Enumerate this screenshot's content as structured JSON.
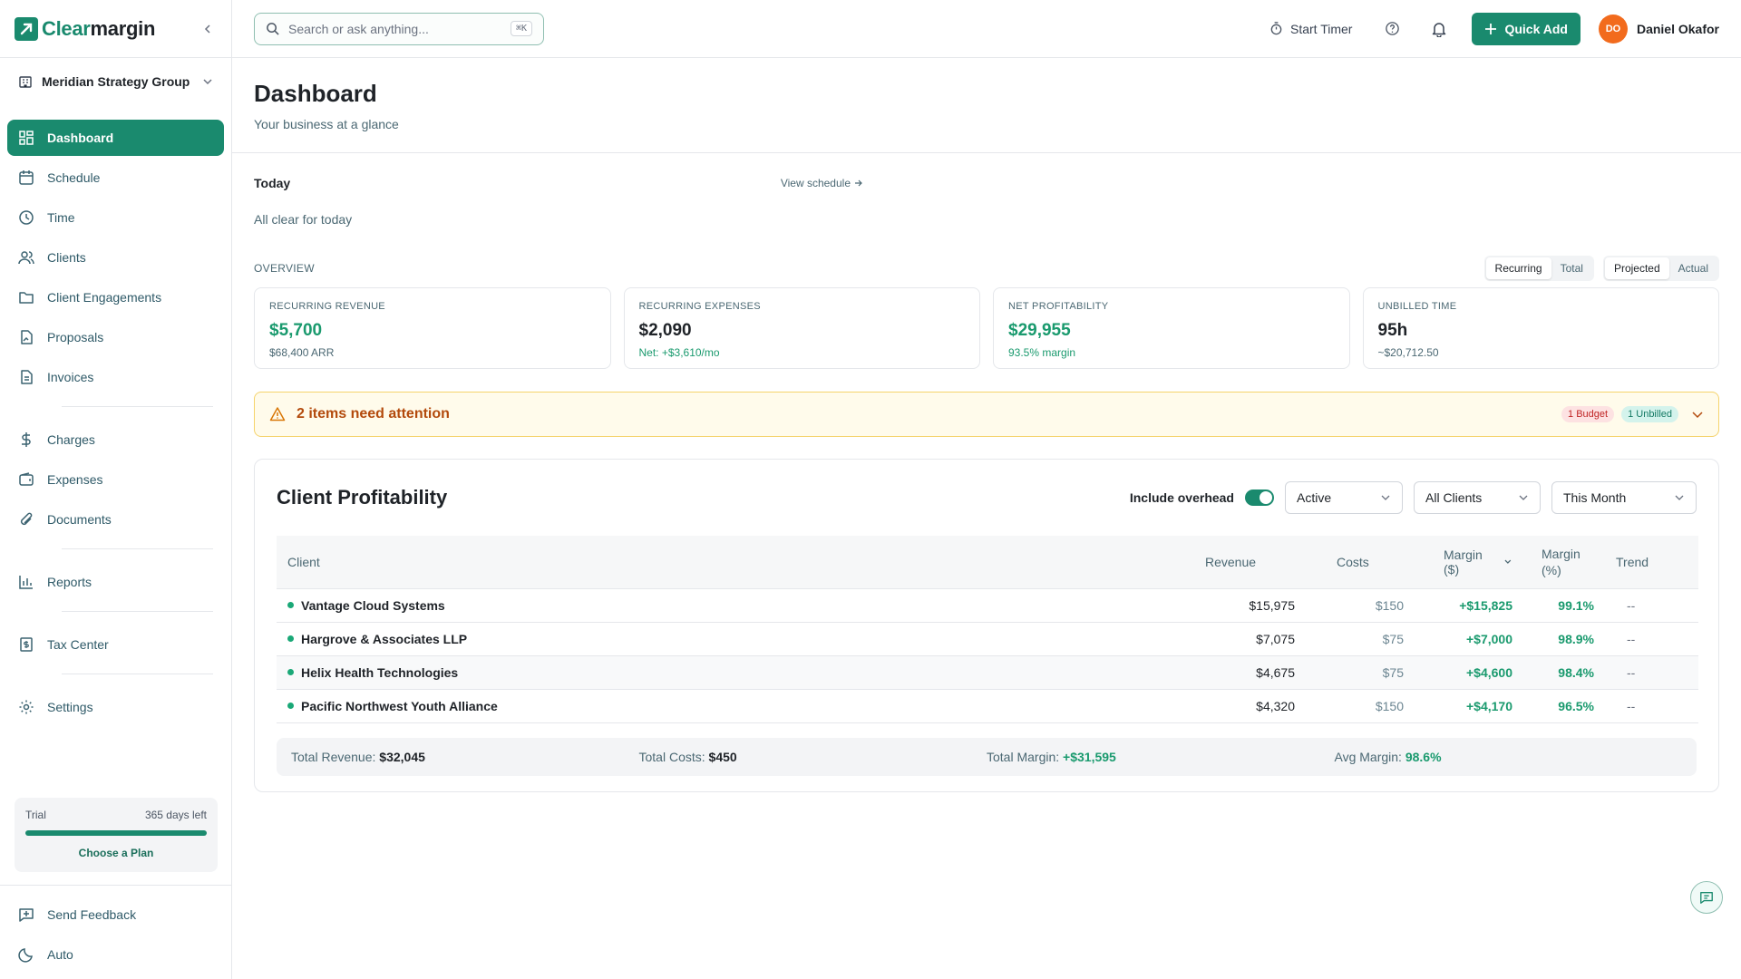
{
  "app": {
    "logo_a": "Clear",
    "logo_b": "margin"
  },
  "org": {
    "name": "Meridian Strategy Group"
  },
  "sidebar": {
    "items": [
      {
        "label": "Dashboard"
      },
      {
        "label": "Schedule"
      },
      {
        "label": "Time"
      },
      {
        "label": "Clients"
      },
      {
        "label": "Client Engagements"
      },
      {
        "label": "Proposals"
      },
      {
        "label": "Invoices"
      },
      {
        "label": "Charges"
      },
      {
        "label": "Expenses"
      },
      {
        "label": "Documents"
      },
      {
        "label": "Reports"
      },
      {
        "label": "Tax Center"
      },
      {
        "label": "Settings"
      }
    ],
    "trial": {
      "label": "Trial",
      "days_left": "365 days left",
      "progress": 1.0,
      "cta": "Choose a Plan"
    },
    "bottom": {
      "feedback": "Send Feedback",
      "theme": "Auto"
    }
  },
  "topbar": {
    "search_placeholder": "Search or ask anything...",
    "search_shortcut": "⌘K",
    "timer": "Start Timer",
    "quick_add": "Quick Add",
    "user_initials": "DO",
    "user_name": "Daniel Okafor"
  },
  "page": {
    "title": "Dashboard",
    "subtitle": "Your business at a glance"
  },
  "today": {
    "title": "Today",
    "view_link": "View schedule",
    "empty": "All clear for today"
  },
  "overview": {
    "label": "OVERVIEW",
    "seg1": [
      "Recurring",
      "Total"
    ],
    "seg2": [
      "Projected",
      "Actual"
    ],
    "cards": [
      {
        "label": "RECURRING REVENUE",
        "value": "$5,700",
        "sub": "$68,400 ARR"
      },
      {
        "label": "RECURRING EXPENSES",
        "value": "$2,090",
        "sub": "Net: +$3,610/mo"
      },
      {
        "label": "NET PROFITABILITY",
        "value": "$29,955",
        "sub": "93.5% margin"
      },
      {
        "label": "UNBILLED TIME",
        "value": "95h",
        "sub": "~$20,712.50"
      }
    ]
  },
  "attention": {
    "text": "2 items need attention",
    "badge_budget": "1 Budget",
    "badge_unbilled": "1 Unbilled"
  },
  "profitability": {
    "title": "Client Profitability",
    "overhead_label": "Include overhead",
    "filter_status": "Active",
    "filter_clients": "All Clients",
    "filter_period": "This Month",
    "columns": {
      "client": "Client",
      "revenue": "Revenue",
      "costs": "Costs",
      "margin_usd": "Margin ($)",
      "margin_pct_a": "Margin",
      "margin_pct_b": "(%)",
      "trend": "Trend"
    },
    "rows": [
      {
        "client": "Vantage Cloud Systems",
        "revenue": "$15,975",
        "costs": "$150",
        "margin": "+$15,825",
        "pct": "99.1%",
        "trend": "--"
      },
      {
        "client": "Hargrove & Associates LLP",
        "revenue": "$7,075",
        "costs": "$75",
        "margin": "+$7,000",
        "pct": "98.9%",
        "trend": "--"
      },
      {
        "client": "Helix Health Technologies",
        "revenue": "$4,675",
        "costs": "$75",
        "margin": "+$4,600",
        "pct": "98.4%",
        "trend": "--"
      },
      {
        "client": "Pacific Northwest Youth Alliance",
        "revenue": "$4,320",
        "costs": "$150",
        "margin": "+$4,170",
        "pct": "96.5%",
        "trend": "--"
      }
    ],
    "totals": {
      "revenue_label": "Total Revenue:",
      "revenue": "$32,045",
      "costs_label": "Total Costs:",
      "costs": "$450",
      "margin_label": "Total Margin:",
      "margin": "+$31,595",
      "avg_label": "Avg Margin:",
      "avg": "98.6%"
    }
  },
  "colors": {
    "brand": "#1a8a6e",
    "positive": "#1a9a6e",
    "warning_bg": "#fffbeb",
    "avatar": "#f26b1d"
  }
}
